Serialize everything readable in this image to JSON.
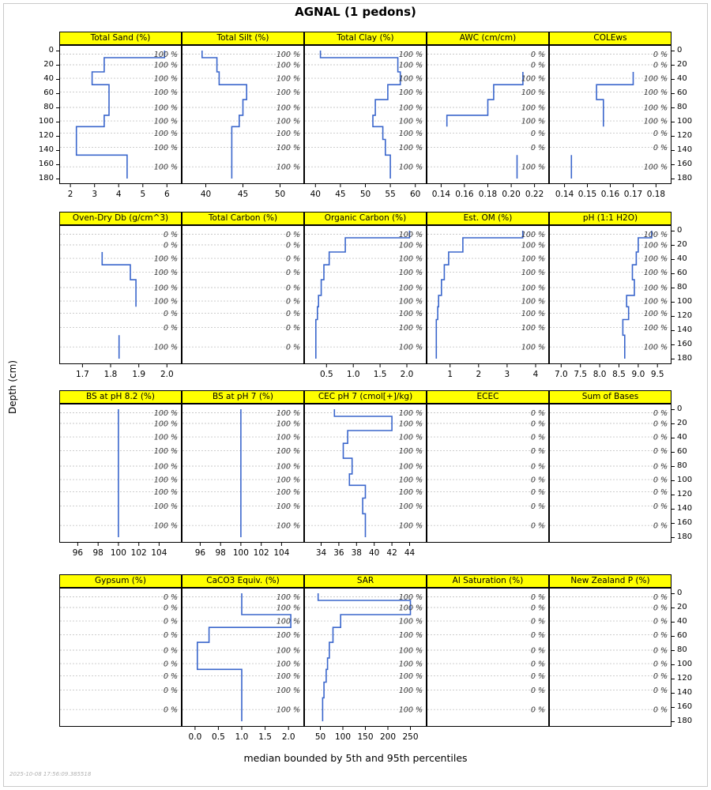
{
  "title": "AGNAL (1 pedons)",
  "ylab": "Depth (cm)",
  "caption": "median bounded by 5th and 95th percentiles",
  "watermark": "2025-10-08 17:56:09.385518",
  "chart_data": {
    "type": "line",
    "step": true,
    "orientation": "depth-profile",
    "line_color": "#3A66CC",
    "strip_color": "#FFFF00",
    "ylabel": "Depth (cm)",
    "depth_ticks": [
      "0",
      "20",
      "40",
      "60",
      "80",
      "100",
      "120",
      "140",
      "160",
      "180"
    ],
    "depth_range": [
      0,
      180
    ],
    "horizon_tops": [
      0,
      10,
      30,
      48,
      69,
      91,
      107,
      125,
      147
    ],
    "horizon_bottoms": [
      10,
      30,
      48,
      69,
      91,
      107,
      125,
      147,
      180
    ],
    "panels": [
      {
        "title": "Total Sand (%)",
        "xrange": [
          1.8,
          6.35
        ],
        "xticks": [
          2,
          3,
          4,
          5,
          6
        ],
        "xtick_labels": [
          "2",
          "3",
          "4",
          "5",
          "6"
        ],
        "values": [
          5.9,
          3.4,
          2.9,
          3.6,
          3.6,
          3.4,
          2.25,
          2.25,
          4.35
        ],
        "pct": [
          "100 %",
          "100 %",
          "100 %",
          "100 %",
          "100 %",
          "100 %",
          "100 %",
          "100 %",
          "100 %"
        ]
      },
      {
        "title": "Total Silt (%)",
        "xrange": [
          37.6,
          52.4
        ],
        "xticks": [
          40,
          45,
          50
        ],
        "xtick_labels": [
          "40",
          "45",
          "50"
        ],
        "values": [
          39.5,
          41.5,
          41.8,
          45.5,
          45.0,
          44.5,
          43.5,
          43.5,
          43.5
        ],
        "pct": [
          "100 %",
          "100 %",
          "100 %",
          "100 %",
          "100 %",
          "100 %",
          "100 %",
          "100 %",
          "100 %"
        ]
      },
      {
        "title": "Total Clay (%)",
        "xrange": [
          39,
          61
        ],
        "xticks": [
          40,
          45,
          50,
          55,
          60
        ],
        "xtick_labels": [
          "40",
          "45",
          "50",
          "55",
          "60"
        ],
        "values": [
          41,
          56.5,
          57,
          54.5,
          52,
          51.5,
          53.5,
          54,
          55
        ],
        "pct": [
          "100 %",
          "100 %",
          "100 %",
          "100 %",
          "100 %",
          "100 %",
          "100 %",
          "100 %",
          "100 %"
        ]
      },
      {
        "title": "AWC (cm/cm)",
        "xrange": [
          0.133,
          0.227
        ],
        "xticks": [
          0.14,
          0.16,
          0.18,
          0.2,
          0.22
        ],
        "xtick_labels": [
          "0.14",
          "0.16",
          "0.18",
          "0.20",
          "0.22"
        ],
        "values": [
          null,
          null,
          0.21,
          0.185,
          0.18,
          0.145,
          null,
          null,
          0.205
        ],
        "pct": [
          "0 %",
          "0 %",
          "100 %",
          "100 %",
          "100 %",
          "100 %",
          "0 %",
          "0 %",
          "100 %"
        ]
      },
      {
        "title": "COLEws",
        "xrange": [
          0.136,
          0.184
        ],
        "xticks": [
          0.14,
          0.15,
          0.16,
          0.17,
          0.18
        ],
        "xtick_labels": [
          "0.14",
          "0.15",
          "0.16",
          "0.17",
          "0.18"
        ],
        "values": [
          null,
          null,
          0.17,
          0.154,
          0.157,
          0.157,
          null,
          null,
          0.143
        ],
        "pct": [
          "0 %",
          "0 %",
          "100 %",
          "100 %",
          "100 %",
          "100 %",
          "0 %",
          "0 %",
          "100 %"
        ]
      },
      {
        "title": "Oven-Dry Db (g/cm^3)",
        "xrange": [
          1.64,
          2.03
        ],
        "xticks": [
          1.7,
          1.8,
          1.9,
          2.0
        ],
        "xtick_labels": [
          "1.7",
          "1.8",
          "1.9",
          "2.0"
        ],
        "values": [
          null,
          null,
          1.77,
          1.87,
          1.89,
          1.89,
          null,
          null,
          1.83
        ],
        "pct": [
          "0 %",
          "0 %",
          "100 %",
          "100 %",
          "100 %",
          "100 %",
          "0 %",
          "0 %",
          "100 %"
        ]
      },
      {
        "title": "Total Carbon (%)",
        "xrange": null,
        "xticks": null,
        "xtick_labels": null,
        "values": [
          null,
          null,
          null,
          null,
          null,
          null,
          null,
          null,
          null
        ],
        "pct": [
          "0 %",
          "0 %",
          "0 %",
          "0 %",
          "0 %",
          "0 %",
          "0 %",
          "0 %",
          "0 %"
        ]
      },
      {
        "title": "Organic Carbon (%)",
        "xrange": [
          0.2,
          2.25
        ],
        "xticks": [
          0.5,
          1.0,
          1.5,
          2.0
        ],
        "xtick_labels": [
          "0.5",
          "1.0",
          "1.5",
          "2.0"
        ],
        "values": [
          2.05,
          0.85,
          0.55,
          0.45,
          0.4,
          0.35,
          0.33,
          0.3,
          0.3
        ],
        "pct": [
          "100 %",
          "100 %",
          "100 %",
          "100 %",
          "100 %",
          "100 %",
          "100 %",
          "100 %",
          "100 %"
        ]
      },
      {
        "title": "Est. OM (%)",
        "xrange": [
          0.4,
          4.25
        ],
        "xticks": [
          1,
          2,
          3,
          4
        ],
        "xtick_labels": [
          "1",
          "2",
          "3",
          "4"
        ],
        "values": [
          3.55,
          1.45,
          0.95,
          0.8,
          0.7,
          0.6,
          0.57,
          0.52,
          0.52
        ],
        "pct": [
          "100 %",
          "100 %",
          "100 %",
          "100 %",
          "100 %",
          "100 %",
          "100 %",
          "100 %",
          "100 %"
        ]
      },
      {
        "title": "pH (1:1 H2O)",
        "xrange": [
          6.85,
          9.7
        ],
        "xticks": [
          7.0,
          7.5,
          8.0,
          8.5,
          9.0,
          9.5
        ],
        "xtick_labels": [
          "7.0",
          "7.5",
          "8.0",
          "8.5",
          "9.0",
          "9.5"
        ],
        "values": [
          9.35,
          9.0,
          8.95,
          8.85,
          8.9,
          8.7,
          8.75,
          8.6,
          8.65
        ],
        "pct": [
          "100 %",
          "100 %",
          "100 %",
          "100 %",
          "100 %",
          "100 %",
          "100 %",
          "100 %",
          "100 %"
        ]
      },
      {
        "title": "BS at pH 8.2 (%)",
        "xrange": [
          94.8,
          105.6
        ],
        "xticks": [
          96,
          98,
          100,
          102,
          104
        ],
        "xtick_labels": [
          "96",
          "98",
          "100",
          "102",
          "104"
        ],
        "values": [
          100,
          100,
          100,
          100,
          100,
          100,
          100,
          100,
          100
        ],
        "pct": [
          "100 %",
          "100 %",
          "100 %",
          "100 %",
          "100 %",
          "100 %",
          "100 %",
          "100 %",
          "100 %"
        ]
      },
      {
        "title": "BS at pH 7 (%)",
        "xrange": [
          94.8,
          105.6
        ],
        "xticks": [
          96,
          98,
          100,
          102,
          104
        ],
        "xtick_labels": [
          "96",
          "98",
          "100",
          "102",
          "104"
        ],
        "values": [
          100,
          100,
          100,
          100,
          100,
          100,
          100,
          100,
          100
        ],
        "pct": [
          "100 %",
          "100 %",
          "100 %",
          "100 %",
          "100 %",
          "100 %",
          "100 %",
          "100 %",
          "100 %"
        ]
      },
      {
        "title": "CEC pH 7 (cmol[+]/kg)",
        "xrange": [
          32.8,
          45.2
        ],
        "xticks": [
          34,
          36,
          38,
          40,
          42,
          44
        ],
        "xtick_labels": [
          "34",
          "36",
          "38",
          "40",
          "42",
          "44"
        ],
        "values": [
          35.5,
          42,
          37,
          36.5,
          37.5,
          37.2,
          39,
          38.7,
          39
        ],
        "pct": [
          "100 %",
          "100 %",
          "100 %",
          "100 %",
          "100 %",
          "100 %",
          "100 %",
          "100 %",
          "100 %"
        ]
      },
      {
        "title": "ECEC",
        "xrange": null,
        "xticks": null,
        "xtick_labels": null,
        "values": [
          null,
          null,
          null,
          null,
          null,
          null,
          null,
          null,
          null
        ],
        "pct": [
          "0 %",
          "0 %",
          "0 %",
          "0 %",
          "0 %",
          "0 %",
          "0 %",
          "0 %",
          "0 %"
        ]
      },
      {
        "title": "Sum of Bases",
        "xrange": null,
        "xticks": null,
        "xtick_labels": null,
        "values": [
          null,
          null,
          null,
          null,
          null,
          null,
          null,
          null,
          null
        ],
        "pct": [
          "0 %",
          "0 %",
          "0 %",
          "0 %",
          "0 %",
          "0 %",
          "0 %",
          "0 %",
          "0 %"
        ]
      },
      {
        "title": "Gypsum (%)",
        "xrange": null,
        "xticks": null,
        "xtick_labels": null,
        "values": [
          null,
          null,
          null,
          null,
          null,
          null,
          null,
          null,
          null
        ],
        "pct": [
          "0 %",
          "0 %",
          "0 %",
          "0 %",
          "0 %",
          "0 %",
          "0 %",
          "0 %",
          "0 %"
        ]
      },
      {
        "title": "CaCO3 Equiv. (%)",
        "xrange": [
          -0.15,
          2.2
        ],
        "xticks": [
          0.0,
          0.5,
          1.0,
          1.5,
          2.0
        ],
        "xtick_labels": [
          "0.0",
          "0.5",
          "1.0",
          "1.5",
          "2.0"
        ],
        "values": [
          1.0,
          1.0,
          2.05,
          0.3,
          0.05,
          0.05,
          1.0,
          1.0,
          1.0
        ],
        "pct": [
          "100 %",
          "100 %",
          "100 %",
          "100 %",
          "100 %",
          "100 %",
          "100 %",
          "100 %",
          "100 %"
        ]
      },
      {
        "title": "SAR",
        "xrange": [
          28,
          272
        ],
        "xticks": [
          50,
          100,
          150,
          200,
          250
        ],
        "xtick_labels": [
          "50",
          "100",
          "150",
          "200",
          "250"
        ],
        "values": [
          45,
          250,
          95,
          78,
          70,
          66,
          63,
          58,
          55
        ],
        "pct": [
          "100 %",
          "100 %",
          "100 %",
          "100 %",
          "100 %",
          "100 %",
          "100 %",
          "100 %",
          "100 %"
        ]
      },
      {
        "title": "Al Saturation (%)",
        "xrange": null,
        "xticks": null,
        "xtick_labels": null,
        "values": [
          null,
          null,
          null,
          null,
          null,
          null,
          null,
          null,
          null
        ],
        "pct": [
          "0 %",
          "0 %",
          "0 %",
          "0 %",
          "0 %",
          "0 %",
          "0 %",
          "0 %",
          "0 %"
        ]
      },
      {
        "title": "New Zealand P (%)",
        "xrange": null,
        "xticks": null,
        "xtick_labels": null,
        "values": [
          null,
          null,
          null,
          null,
          null,
          null,
          null,
          null,
          null
        ],
        "pct": [
          "0 %",
          "0 %",
          "0 %",
          "0 %",
          "0 %",
          "0 %",
          "0 %",
          "0 %",
          "0 %"
        ]
      }
    ]
  }
}
